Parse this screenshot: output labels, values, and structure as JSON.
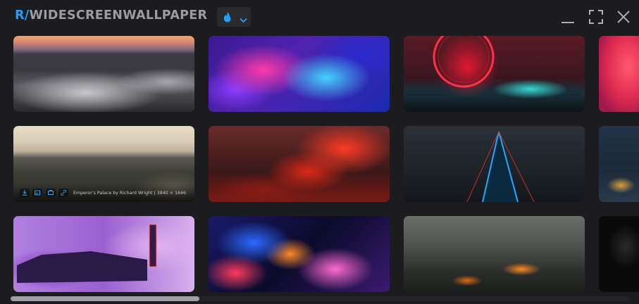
{
  "app": {
    "title_prefix": "R/",
    "title_name": "WIDESCREENWALLPAPER",
    "sort_icon": "flame-icon",
    "accent_color": "#1ea0ff"
  },
  "window_controls": [
    "minimize-icon",
    "fullscreen-icon",
    "close-icon"
  ],
  "gallery": {
    "hovered_caption": "Emperor's Palace by Richard Wright | 3840 × 1646",
    "overlay_actions": [
      "download-icon",
      "image-icon",
      "gallery-icon",
      "link-icon"
    ]
  }
}
